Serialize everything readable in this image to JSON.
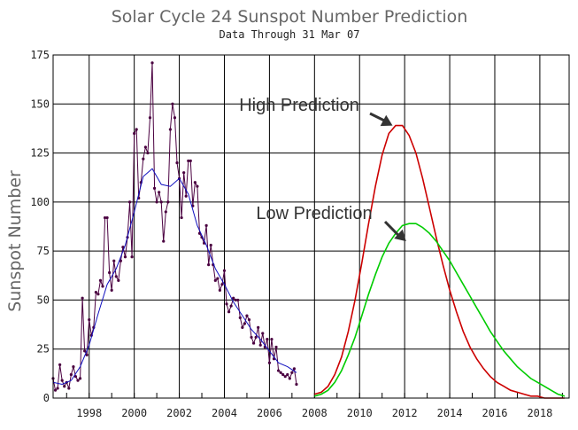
{
  "chart_data": {
    "type": "line",
    "title": "Solar Cycle 24 Sunspot Number Prediction",
    "subtitle": "Data Through 31 Mar 07",
    "xlabel": "",
    "ylabel": "Sunspot Number",
    "xlim": [
      1996.4,
      2019.3
    ],
    "ylim": [
      0,
      175
    ],
    "x_ticks": [
      1998,
      2000,
      2002,
      2004,
      2006,
      2008,
      2010,
      2012,
      2014,
      2016,
      2018
    ],
    "y_ticks": [
      0,
      25,
      50,
      75,
      100,
      125,
      150,
      175
    ],
    "grid": true,
    "colors": {
      "monthly": "#4a0040",
      "smoothed": "#1010c0",
      "high": "#cc0000",
      "low": "#00cc00",
      "arrow": "#333333"
    },
    "annotations": [
      {
        "text": "High Prediction",
        "target": [
          2011.7,
          139
        ]
      },
      {
        "text": "Low Prediction",
        "target": [
          2012.3,
          80
        ]
      }
    ],
    "series": [
      {
        "role": "monthly",
        "x": [
          1996.4,
          1996.5,
          1996.6,
          1996.7,
          1996.8,
          1996.9,
          1997.0,
          1997.1,
          1997.2,
          1997.3,
          1997.4,
          1997.5,
          1997.6,
          1997.7,
          1997.8,
          1997.9,
          1998.0,
          1998.1,
          1998.2,
          1998.3,
          1998.4,
          1998.5,
          1998.6,
          1998.7,
          1998.8,
          1998.9,
          1999.0,
          1999.1,
          1999.2,
          1999.3,
          1999.4,
          1999.5,
          1999.6,
          1999.7,
          1999.8,
          1999.9,
          2000.0,
          2000.1,
          2000.2,
          2000.3,
          2000.4,
          2000.5,
          2000.6,
          2000.7,
          2000.8,
          2000.9,
          2001.0,
          2001.1,
          2001.2,
          2001.3,
          2001.4,
          2001.5,
          2001.6,
          2001.7,
          2001.8,
          2001.9,
          2002.0,
          2002.1,
          2002.2,
          2002.3,
          2002.4,
          2002.5,
          2002.6,
          2002.7,
          2002.8,
          2002.9,
          2003.0,
          2003.1,
          2003.2,
          2003.3,
          2003.4,
          2003.5,
          2003.6,
          2003.7,
          2003.8,
          2003.9,
          2004.0,
          2004.1,
          2004.2,
          2004.3,
          2004.4,
          2004.5,
          2004.6,
          2004.7,
          2004.8,
          2004.9,
          2005.0,
          2005.1,
          2005.2,
          2005.3,
          2005.4,
          2005.5,
          2005.6,
          2005.7,
          2005.8,
          2005.9,
          2006.0,
          2006.1,
          2006.2,
          2006.3,
          2006.4,
          2006.5,
          2006.6,
          2006.7,
          2006.8,
          2006.9,
          2007.0,
          2007.1,
          2007.2
        ],
        "values": [
          10,
          4,
          5,
          17,
          9,
          6,
          8,
          5,
          12,
          16,
          11,
          9,
          10,
          51,
          24,
          22,
          40,
          32,
          36,
          54,
          53,
          60,
          57,
          92,
          92,
          64,
          55,
          70,
          62,
          60,
          70,
          77,
          72,
          82,
          100,
          72,
          135,
          137,
          102,
          110,
          122,
          128,
          125,
          143,
          171,
          107,
          100,
          105,
          100,
          80,
          95,
          100,
          137,
          150,
          143,
          120,
          112,
          92,
          115,
          103,
          121,
          121,
          98,
          110,
          108,
          84,
          82,
          79,
          88,
          68,
          78,
          68,
          60,
          61,
          55,
          58,
          65,
          48,
          44,
          47,
          51,
          50,
          50,
          41,
          36,
          38,
          42,
          40,
          31,
          28,
          31,
          36,
          27,
          33,
          26,
          30,
          18,
          30,
          20,
          26,
          14,
          13,
          12,
          11,
          12,
          10,
          13,
          15,
          7
        ]
      },
      {
        "role": "smoothed",
        "x": [
          1996.4,
          1996.8,
          1997.2,
          1997.6,
          1998.0,
          1998.4,
          1998.8,
          1999.2,
          1999.6,
          2000.0,
          2000.4,
          2000.8,
          2001.2,
          2001.6,
          2002.0,
          2002.4,
          2002.8,
          2003.2,
          2003.6,
          2004.0,
          2004.4,
          2004.8,
          2005.2,
          2005.6,
          2006.0,
          2006.4,
          2006.8,
          2007.2
        ],
        "values": [
          8,
          7,
          9,
          16,
          27,
          43,
          58,
          66,
          78,
          95,
          113,
          117,
          109,
          108,
          112,
          104,
          88,
          78,
          66,
          58,
          49,
          42,
          35,
          30,
          24,
          18,
          16,
          13
        ]
      },
      {
        "name": "High Prediction",
        "role": "high",
        "x": [
          2008.0,
          2008.3,
          2008.6,
          2008.9,
          2009.2,
          2009.5,
          2009.8,
          2010.1,
          2010.4,
          2010.7,
          2011.0,
          2011.3,
          2011.6,
          2011.9,
          2012.2,
          2012.5,
          2012.8,
          2013.1,
          2013.4,
          2013.7,
          2014.0,
          2014.3,
          2014.6,
          2014.9,
          2015.2,
          2015.5,
          2015.8,
          2016.1,
          2016.4,
          2016.7,
          2017.0,
          2017.3,
          2017.6,
          2017.9,
          2018.2,
          2018.5,
          2018.8,
          2019.1
        ],
        "values": [
          2,
          3,
          6,
          12,
          21,
          34,
          50,
          69,
          89,
          108,
          124,
          135,
          139,
          139,
          134,
          125,
          112,
          97,
          82,
          68,
          55,
          44,
          34,
          26,
          20,
          15,
          11,
          8,
          6,
          4,
          3,
          2,
          1,
          1,
          0,
          0,
          0,
          0
        ]
      },
      {
        "name": "Low Prediction",
        "role": "low",
        "x": [
          2008.0,
          2008.3,
          2008.6,
          2008.9,
          2009.2,
          2009.5,
          2009.8,
          2010.1,
          2010.4,
          2010.7,
          2011.0,
          2011.3,
          2011.6,
          2011.9,
          2012.2,
          2012.5,
          2012.8,
          2013.1,
          2013.4,
          2013.7,
          2014.0,
          2014.3,
          2014.6,
          2014.9,
          2015.2,
          2015.5,
          2015.8,
          2016.1,
          2016.4,
          2016.7,
          2017.0,
          2017.3,
          2017.6,
          2017.9,
          2018.2,
          2018.5,
          2018.8,
          2019.1
        ],
        "values": [
          1,
          2,
          4,
          8,
          14,
          22,
          31,
          42,
          53,
          63,
          72,
          79,
          84,
          88,
          89,
          89,
          87,
          84,
          80,
          75,
          70,
          64,
          58,
          52,
          46,
          40,
          34,
          29,
          24,
          20,
          16,
          13,
          10,
          8,
          6,
          4,
          2,
          1
        ]
      }
    ]
  }
}
